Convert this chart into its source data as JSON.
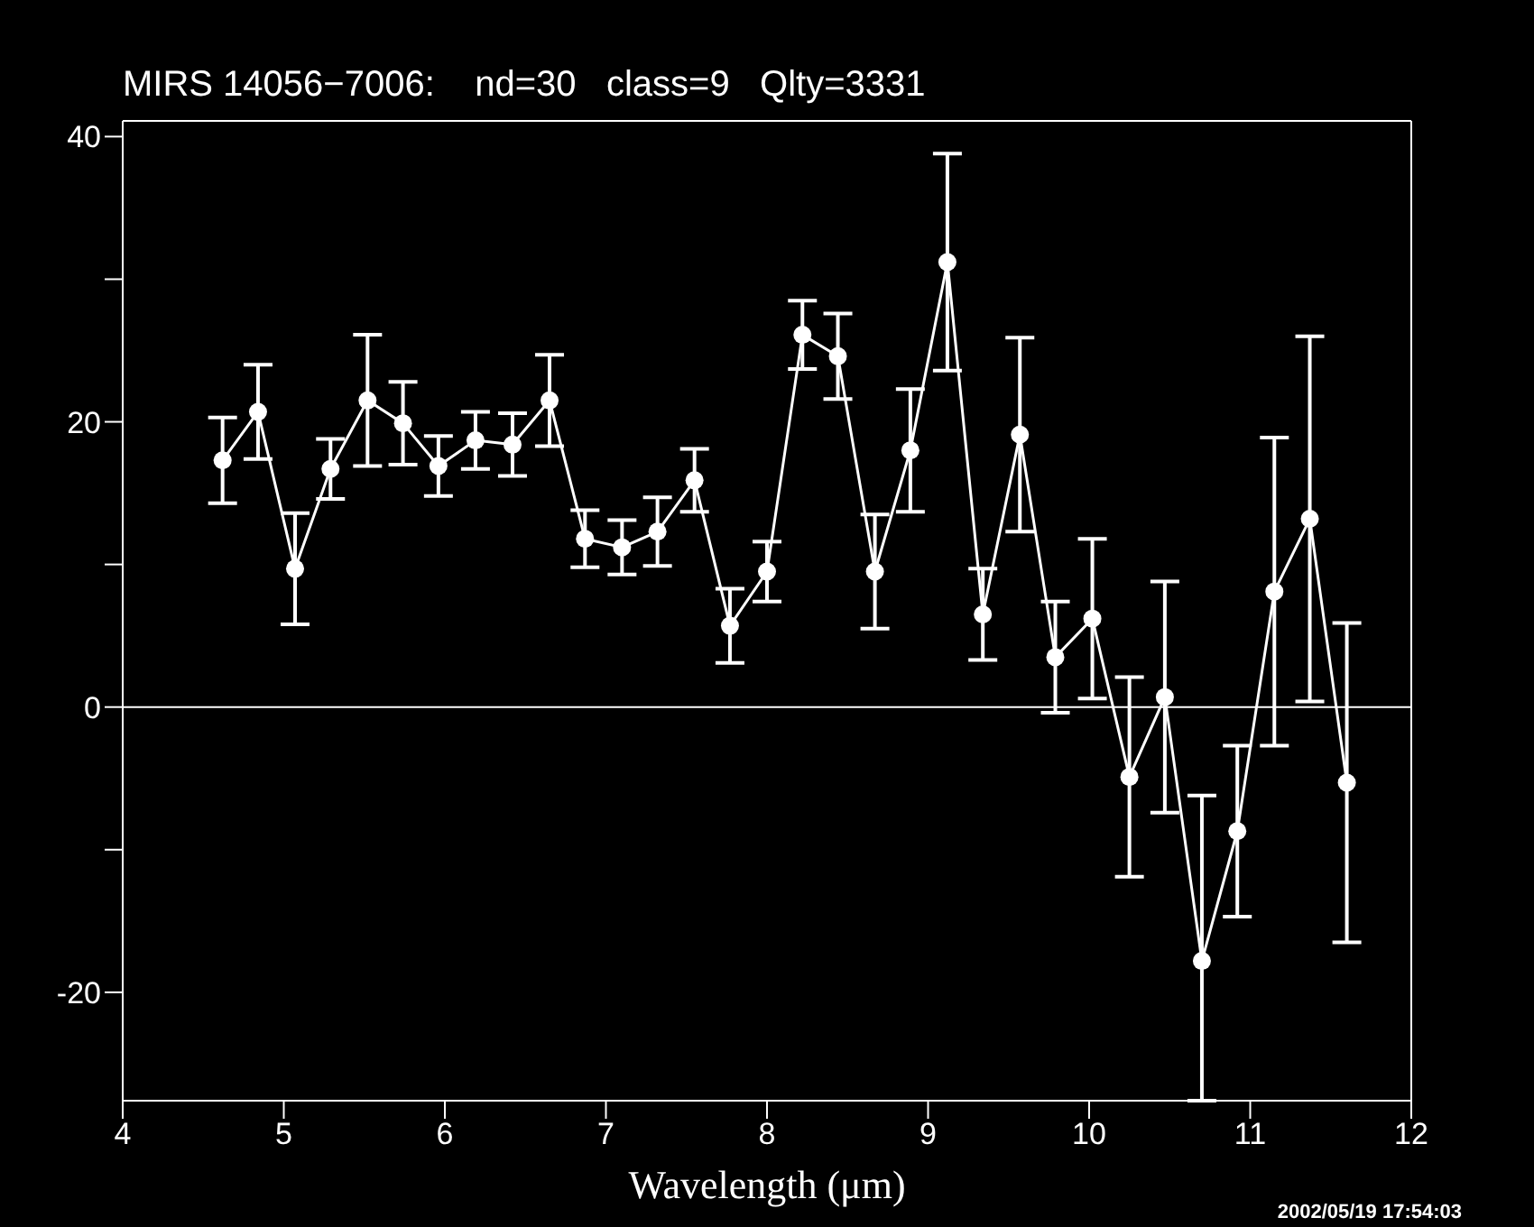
{
  "chart_data": {
    "type": "line",
    "title": "MIRS 14056−7006:    nd=30   class=9   Qlty=3331",
    "xlabel": "Wavelength (μm)",
    "annotations": [
      "2002/05/19 17:54:03"
    ],
    "x": [
      4.62,
      4.84,
      5.07,
      5.29,
      5.52,
      5.74,
      5.96,
      6.19,
      6.42,
      6.65,
      6.87,
      7.1,
      7.32,
      7.55,
      7.77,
      8.0,
      8.22,
      8.44,
      8.67,
      8.89,
      9.12,
      9.34,
      9.57,
      9.79,
      10.02,
      10.25,
      10.47,
      10.7,
      10.92,
      11.15,
      11.37,
      11.6
    ],
    "series": [
      {
        "color": "#ffffff",
        "values": [
          17.3,
          20.7,
          9.7,
          16.7,
          21.5,
          19.9,
          16.9,
          18.7,
          18.4,
          21.5,
          11.8,
          11.2,
          12.3,
          15.9,
          5.7,
          9.5,
          26.1,
          24.6,
          9.5,
          18.0,
          31.2,
          6.5,
          19.1,
          3.5,
          6.2,
          -4.9,
          0.7,
          -17.8,
          -8.7,
          8.1,
          13.2,
          -5.3
        ],
        "errors": [
          3.0,
          3.3,
          3.9,
          2.1,
          4.6,
          2.9,
          2.1,
          2.0,
          2.2,
          3.2,
          2.0,
          1.9,
          2.4,
          2.2,
          2.6,
          2.1,
          2.4,
          3.0,
          4.0,
          4.3,
          7.6,
          3.2,
          6.8,
          3.9,
          5.6,
          7.0,
          8.1,
          [
            -27.6,
            -6.2
          ],
          6.0,
          10.8,
          12.8,
          11.2
        ]
      }
    ],
    "xlim": [
      4,
      12
    ],
    "ylim": [
      -27.6,
      41.1
    ],
    "xticks": [
      4,
      5,
      6,
      7,
      8,
      9,
      10,
      11,
      12
    ],
    "yticks": [
      -20,
      {
        "value": -10,
        "label": null
      },
      0,
      {
        "value": 10,
        "label": null
      },
      20,
      {
        "value": 30,
        "label": null
      },
      40
    ],
    "ref_lines": [
      {
        "axis": "y",
        "value": 0,
        "color": "#ffffff"
      }
    ],
    "marker": "circle"
  }
}
